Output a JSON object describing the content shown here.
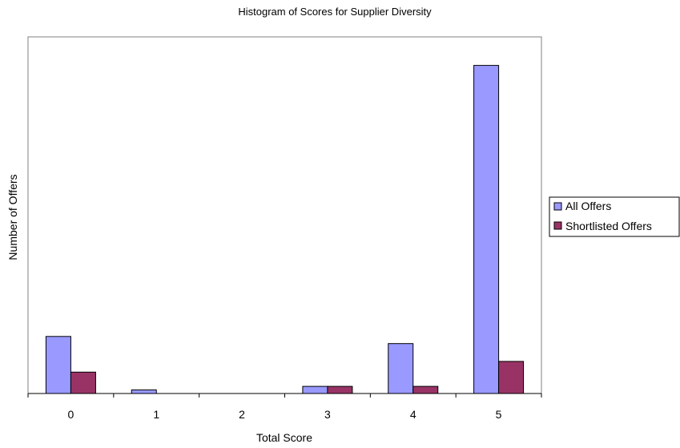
{
  "chart_data": {
    "type": "bar",
    "title": "Histogram of Scores for Supplier Diversity",
    "xlabel": "Total Score",
    "ylabel": "Number of Offers",
    "categories": [
      "0",
      "1",
      "2",
      "3",
      "4",
      "5"
    ],
    "series": [
      {
        "name": "All Offers",
        "color": "#9999ff",
        "values": [
          16,
          1,
          0,
          2,
          14,
          92
        ]
      },
      {
        "name": "Shortlisted Offers",
        "color": "#993366",
        "values": [
          6,
          0,
          0,
          2,
          2,
          9
        ]
      }
    ],
    "ylim": [
      0,
      100
    ],
    "y_tick_labels_shown": false,
    "grid": false,
    "legend_position": "right"
  }
}
